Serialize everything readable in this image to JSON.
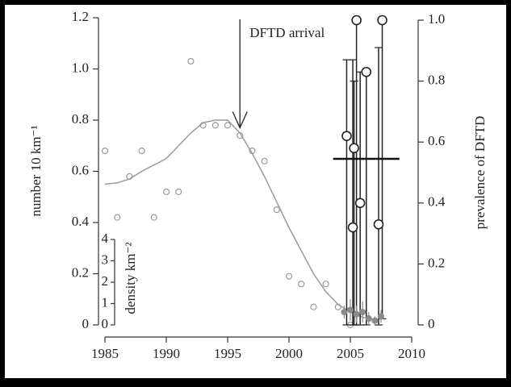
{
  "chart_data": {
    "type": "scatter",
    "ylabel": "number 10 km⁻¹",
    "y2label": "prevalence of DFTD",
    "xlim": [
      1985,
      2010
    ],
    "xticks": [
      1985,
      1990,
      1995,
      2000,
      2005,
      2010
    ],
    "ylim": [
      0,
      1.2
    ],
    "yticks": [
      0,
      0.2,
      0.4,
      0.6,
      0.8,
      {
        "value": 1,
        "label": "1.0"
      },
      1.2
    ],
    "y2lim": [
      0,
      1
    ],
    "y2ticks": [
      0,
      0.2,
      0.4,
      0.6,
      0.8,
      {
        "value": 1,
        "label": "1.0"
      }
    ],
    "inset": {
      "label": "density km⁻²",
      "ylim": [
        0,
        4
      ],
      "yticks": [
        0,
        1,
        2,
        3,
        4
      ]
    },
    "arrival": {
      "label": "DFTD arrival",
      "x": 1996,
      "y": 0.77
    },
    "mean_prevalence": {
      "value": 0.545,
      "x": [
        2003.6,
        2009
      ]
    },
    "series": [
      {
        "kind": "points",
        "color": "#9a9a9a",
        "x": [
          1985,
          1986,
          1987,
          1988,
          1989,
          1990,
          1991,
          1992,
          1993,
          1994,
          1995,
          1996,
          1997,
          1998,
          1999,
          2000,
          2001,
          2002,
          2003,
          2004,
          2005
        ],
        "values": [
          0.68,
          0.42,
          0.58,
          0.68,
          0.42,
          0.52,
          0.52,
          1.03,
          0.78,
          0.78,
          0.78,
          0.74,
          0.68,
          0.64,
          0.45,
          0.19,
          0.16,
          0.07,
          0.16,
          0.07,
          0.0
        ]
      },
      {
        "kind": "line",
        "color": "#9a9a9a",
        "x": [
          1985,
          1986,
          1987,
          1988,
          1989,
          1990,
          1991,
          1992,
          1993,
          1994,
          1995,
          1996,
          1997,
          1998,
          1999,
          2000,
          2001,
          2002,
          2003,
          2004,
          2005,
          2006,
          2007
        ],
        "values": [
          0.55,
          0.555,
          0.57,
          0.6,
          0.625,
          0.65,
          0.7,
          0.75,
          0.79,
          0.8,
          0.8,
          0.75,
          0.67,
          0.58,
          0.48,
          0.38,
          0.29,
          0.2,
          0.13,
          0.08,
          0.05,
          0.03,
          0.02
        ]
      },
      {
        "kind": "prevalence",
        "axis": "y2",
        "color": "#222222",
        "x": [
          2004.7,
          2005.2,
          2005.3,
          2005.5,
          2005.8,
          2006.3,
          2007.3,
          2007.6
        ],
        "values": [
          0.62,
          0.32,
          0.58,
          1.0,
          0.4,
          0.83,
          0.33,
          1.0
        ],
        "lower": [
          0,
          0,
          0,
          0,
          0,
          0,
          0,
          0.02
        ],
        "upper": [
          0.87,
          0.87,
          0.8,
          1.0,
          0.83,
          0.83,
          0.91,
          1.0
        ]
      },
      {
        "kind": "density",
        "axis": "inset",
        "color": "#8a8a8a",
        "x": [
          2004.5,
          2005,
          2005.5,
          2006,
          2006.5,
          2007,
          2007.5
        ],
        "values": [
          0.6,
          0.7,
          0.5,
          0.6,
          0.3,
          0.2,
          0.4
        ],
        "err": [
          0.3,
          0.5,
          0.4,
          0.5,
          0.3,
          0.2,
          0.3
        ]
      }
    ]
  }
}
